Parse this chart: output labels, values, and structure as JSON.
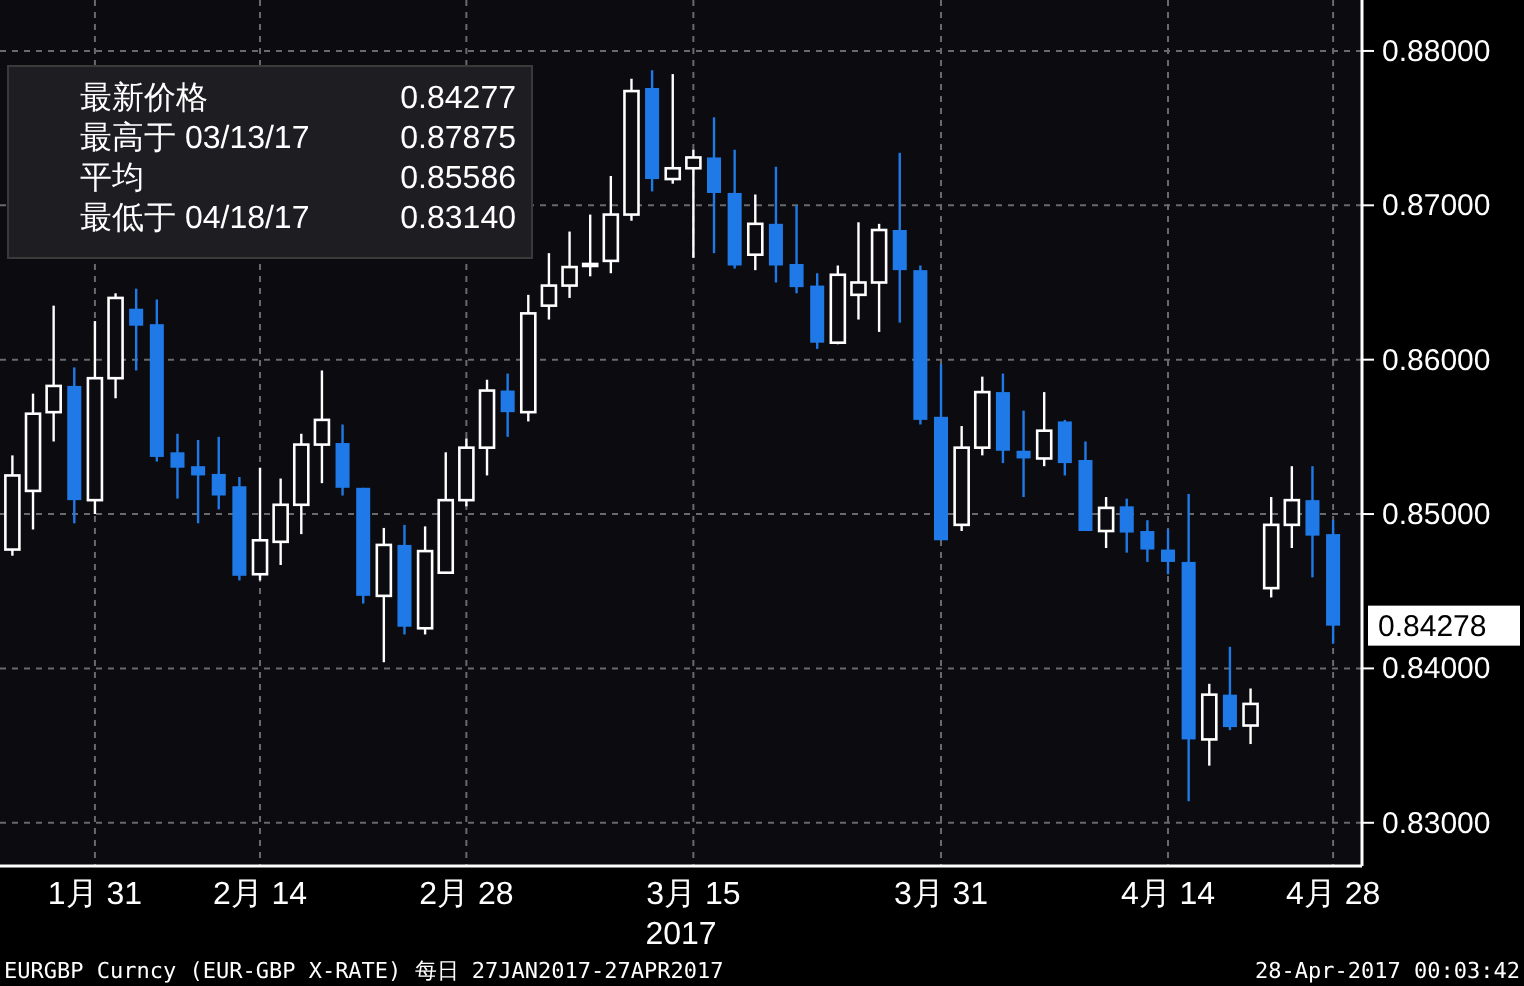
{
  "chart_data": {
    "type": "candlestick",
    "categories": [
      null,
      null,
      null,
      null,
      "1月 31",
      null,
      null,
      null,
      null,
      null,
      null,
      null,
      "2月 14",
      null,
      null,
      null,
      null,
      null,
      null,
      null,
      null,
      null,
      "2月 28",
      null,
      null,
      null,
      null,
      null,
      null,
      null,
      null,
      null,
      null,
      "3月 15",
      null,
      null,
      null,
      null,
      null,
      null,
      null,
      null,
      null,
      null,
      null,
      "3月 31",
      null,
      null,
      null,
      null,
      null,
      null,
      null,
      null,
      null,
      null,
      "4月 14",
      null,
      null,
      null,
      null,
      null,
      null,
      null,
      "4月 28"
    ],
    "ohlc": [
      [
        0.8477,
        0.8538,
        0.8473,
        0.8525
      ],
      [
        0.8515,
        0.8578,
        0.849,
        0.8565
      ],
      [
        0.8566,
        0.8635,
        0.8547,
        0.8583
      ],
      [
        0.8583,
        0.8595,
        0.8494,
        0.8509
      ],
      [
        0.8509,
        0.8625,
        0.85,
        0.8588
      ],
      [
        0.8588,
        0.8643,
        0.8575,
        0.864
      ],
      [
        0.8633,
        0.8646,
        0.8593,
        0.8622
      ],
      [
        0.8623,
        0.8639,
        0.8534,
        0.8537
      ],
      [
        0.854,
        0.8552,
        0.851,
        0.853
      ],
      [
        0.8531,
        0.8548,
        0.8494,
        0.8525
      ],
      [
        0.8526,
        0.855,
        0.8503,
        0.8512
      ],
      [
        0.8518,
        0.8524,
        0.8457,
        0.846
      ],
      [
        0.8461,
        0.853,
        0.8457,
        0.8483
      ],
      [
        0.8482,
        0.8523,
        0.8467,
        0.8506
      ],
      [
        0.8506,
        0.8552,
        0.8487,
        0.8545
      ],
      [
        0.8545,
        0.8593,
        0.852,
        0.8561
      ],
      [
        0.8546,
        0.8558,
        0.8512,
        0.8517
      ],
      [
        0.8517,
        0.8517,
        0.8442,
        0.8447
      ],
      [
        0.8447,
        0.8491,
        0.8404,
        0.848
      ],
      [
        0.848,
        0.8493,
        0.8422,
        0.8427
      ],
      [
        0.8426,
        0.8492,
        0.8422,
        0.8476
      ],
      [
        0.8462,
        0.854,
        0.8462,
        0.8509
      ],
      [
        0.8509,
        0.8549,
        0.8505,
        0.8543
      ],
      [
        0.8543,
        0.8587,
        0.8525,
        0.858
      ],
      [
        0.858,
        0.8591,
        0.855,
        0.8566
      ],
      [
        0.8566,
        0.8642,
        0.856,
        0.863
      ],
      [
        0.8635,
        0.8669,
        0.8626,
        0.8648
      ],
      [
        0.8648,
        0.8683,
        0.864,
        0.866
      ],
      [
        0.8661,
        0.8694,
        0.8654,
        0.8662
      ],
      [
        0.8664,
        0.8719,
        0.8656,
        0.8694
      ],
      [
        0.8694,
        0.8782,
        0.869,
        0.8774
      ],
      [
        0.8776,
        0.87875,
        0.8709,
        0.8717
      ],
      [
        0.8717,
        0.8785,
        0.8714,
        0.8724
      ],
      [
        0.8724,
        0.8736,
        0.8666,
        0.8731
      ],
      [
        0.8731,
        0.8757,
        0.8669,
        0.8708
      ],
      [
        0.8708,
        0.8736,
        0.8659,
        0.8661
      ],
      [
        0.8668,
        0.8707,
        0.8658,
        0.8688
      ],
      [
        0.8688,
        0.8725,
        0.865,
        0.8661
      ],
      [
        0.8662,
        0.87,
        0.8643,
        0.8647
      ],
      [
        0.8648,
        0.8656,
        0.8607,
        0.8611
      ],
      [
        0.8611,
        0.8661,
        0.861,
        0.8655
      ],
      [
        0.8642,
        0.8689,
        0.8626,
        0.865
      ],
      [
        0.865,
        0.8688,
        0.8618,
        0.8684
      ],
      [
        0.8684,
        0.8734,
        0.8624,
        0.8658
      ],
      [
        0.8658,
        0.8661,
        0.8558,
        0.8561
      ],
      [
        0.8563,
        0.8597,
        0.8483,
        0.8483
      ],
      [
        0.8493,
        0.8557,
        0.8489,
        0.8543
      ],
      [
        0.8543,
        0.8589,
        0.8538,
        0.8579
      ],
      [
        0.8579,
        0.8591,
        0.8533,
        0.8541
      ],
      [
        0.8541,
        0.8567,
        0.8511,
        0.8536
      ],
      [
        0.8536,
        0.8579,
        0.8531,
        0.8554
      ],
      [
        0.856,
        0.8561,
        0.8525,
        0.8533
      ],
      [
        0.8535,
        0.8547,
        0.8489,
        0.8489
      ],
      [
        0.8489,
        0.8511,
        0.8478,
        0.8504
      ],
      [
        0.8505,
        0.851,
        0.8475,
        0.8488
      ],
      [
        0.8489,
        0.8496,
        0.8469,
        0.8477
      ],
      [
        0.8477,
        0.849,
        0.8461,
        0.8469
      ],
      [
        0.8469,
        0.8513,
        0.8314,
        0.8354
      ],
      [
        0.8354,
        0.839,
        0.8337,
        0.8383
      ],
      [
        0.8383,
        0.8414,
        0.836,
        0.8362
      ],
      [
        0.8363,
        0.8387,
        0.8351,
        0.8377
      ],
      [
        0.8452,
        0.8511,
        0.8446,
        0.8493
      ],
      [
        0.8493,
        0.8531,
        0.8478,
        0.8509
      ],
      [
        0.8509,
        0.8531,
        0.8459,
        0.8486
      ],
      [
        0.8487,
        0.8496,
        0.8416,
        0.84277
      ]
    ],
    "colors": [
      "#ffffff",
      "#ffffff",
      "#ffffff",
      "#1f7ae8",
      "#ffffff",
      "#ffffff",
      "#1f7ae8",
      "#1f7ae8",
      "#1f7ae8",
      "#1f7ae8",
      "#1f7ae8",
      "#1f7ae8",
      "#ffffff",
      "#ffffff",
      "#ffffff",
      "#ffffff",
      "#1f7ae8",
      "#1f7ae8",
      "#ffffff",
      "#1f7ae8",
      "#ffffff",
      "#ffffff",
      "#ffffff",
      "#ffffff",
      "#1f7ae8",
      "#ffffff",
      "#ffffff",
      "#ffffff",
      "#ffffff",
      "#ffffff",
      "#ffffff",
      "#1f7ae8",
      "#ffffff",
      "#ffffff",
      "#1f7ae8",
      "#1f7ae8",
      "#ffffff",
      "#1f7ae8",
      "#1f7ae8",
      "#1f7ae8",
      "#ffffff",
      "#ffffff",
      "#ffffff",
      "#1f7ae8",
      "#1f7ae8",
      "#1f7ae8",
      "#ffffff",
      "#ffffff",
      "#1f7ae8",
      "#1f7ae8",
      "#ffffff",
      "#1f7ae8",
      "#1f7ae8",
      "#ffffff",
      "#1f7ae8",
      "#1f7ae8",
      "#1f7ae8",
      "#1f7ae8",
      "#ffffff",
      "#1f7ae8",
      "#ffffff",
      "#ffffff",
      "#ffffff",
      "#1f7ae8",
      "#1f7ae8"
    ],
    "ylim": [
      0.8272,
      0.8833
    ],
    "yticks": [
      {
        "value": 0.83,
        "label": "0.83000"
      },
      {
        "value": 0.84,
        "label": "0.84000"
      },
      {
        "value": 0.85,
        "label": "0.85000"
      },
      {
        "value": 0.86,
        "label": "0.86000"
      },
      {
        "value": 0.87,
        "label": "0.87000"
      },
      {
        "value": 0.88,
        "label": "0.88000"
      }
    ],
    "xlabel": "2017",
    "grid": true,
    "annotations": [
      "最新价格",
      "0.84277",
      "最高于 03/13/17",
      "0.87875",
      "平均",
      "0.85586",
      "最低于 04/18/17",
      "0.83140",
      "EURGBP Curncy (EUR-GBP X-RATE)  每日 27JAN2017-27APR2017",
      "28-Apr-2017 00:03:42",
      "0.84278"
    ]
  }
}
